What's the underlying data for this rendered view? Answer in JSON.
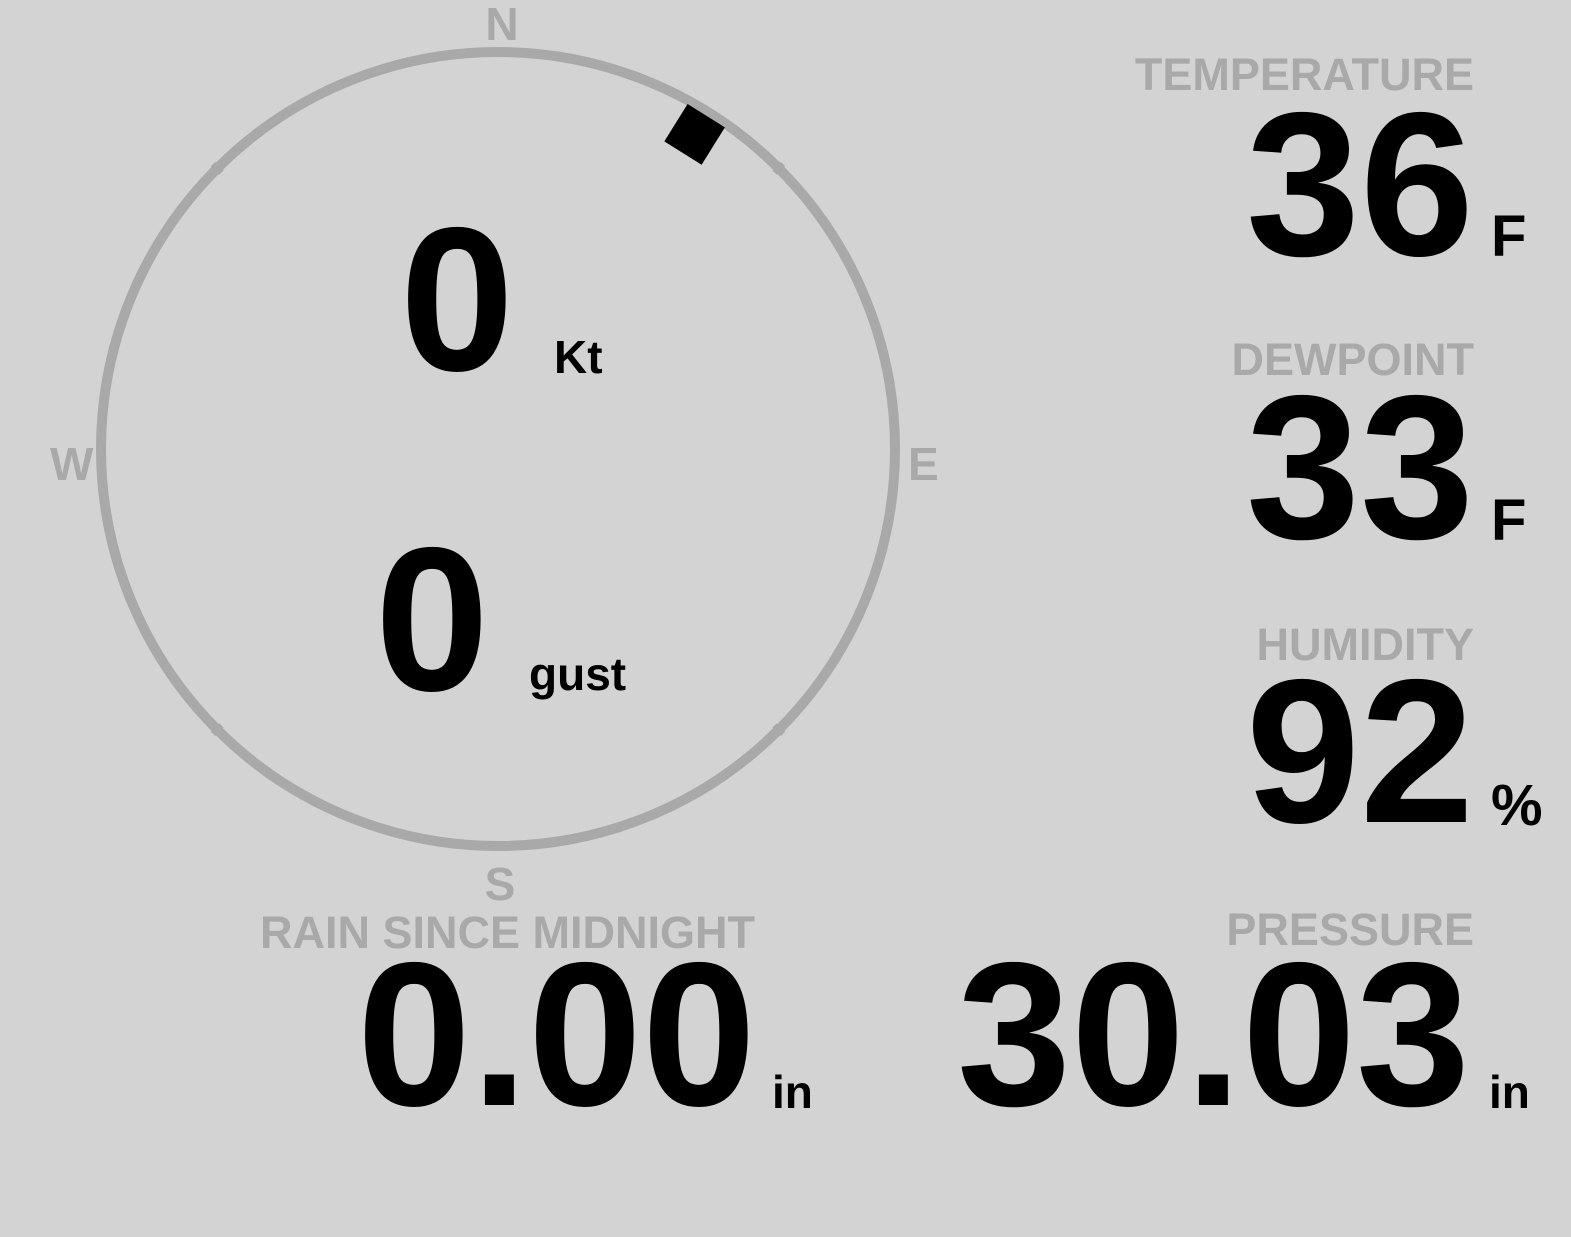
{
  "colors": {
    "background": "#d3d3d3",
    "label": "#a9a9a9",
    "value": "#000000",
    "compass_ring": "#a9a9a9",
    "wind_marker": "#000000"
  },
  "compass": {
    "north": "N",
    "east": "E",
    "south": "S",
    "west": "W",
    "wind_direction_deg": 32
  },
  "wind": {
    "speed": "0",
    "speed_unit": "Kt",
    "gust": "0",
    "gust_unit": "gust"
  },
  "temperature": {
    "label": "TEMPERATURE",
    "value": "36",
    "unit": "F"
  },
  "dewpoint": {
    "label": "DEWPOINT",
    "value": "33",
    "unit": "F"
  },
  "humidity": {
    "label": "HUMIDITY",
    "value": "92",
    "unit": "%"
  },
  "rain": {
    "label": "RAIN SINCE MIDNIGHT",
    "value": "0.00",
    "unit": "in"
  },
  "pressure": {
    "label": "PRESSURE",
    "value": "30.03",
    "unit": "in"
  }
}
